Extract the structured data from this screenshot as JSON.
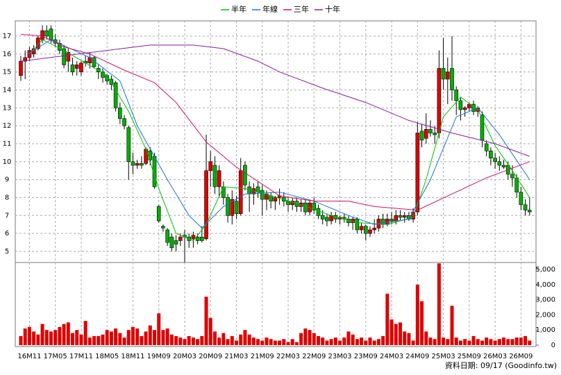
{
  "chart_data": [
    {
      "type": "candlestick",
      "up_color": "#e00000",
      "down_color": "#00b000",
      "ylim": [
        4.38,
        17.85
      ],
      "yticks": [
        5,
        6,
        7,
        8,
        9,
        10,
        11,
        12,
        13,
        14,
        15,
        16,
        17
      ],
      "grid": true,
      "categories": [
        null,
        null,
        "16M11",
        null,
        null,
        null,
        null,
        null,
        "17M05",
        null,
        null,
        null,
        null,
        null,
        "17M11",
        null,
        null,
        null,
        null,
        null,
        "18M05",
        null,
        null,
        null,
        null,
        null,
        "18M11",
        null,
        null,
        null,
        null,
        null,
        "19M09",
        null,
        null,
        null,
        null,
        null,
        "20M03",
        null,
        null,
        null,
        null,
        null,
        "20M09",
        null,
        null,
        null,
        null,
        null,
        "21M03",
        null,
        null,
        null,
        null,
        null,
        "21M09",
        null,
        null,
        null,
        null,
        null,
        "22M03",
        null,
        null,
        null,
        null,
        null,
        "22M09",
        null,
        null,
        null,
        null,
        null,
        "23M03",
        null,
        null,
        null,
        null,
        null,
        "23M09",
        null,
        null,
        null,
        null,
        null,
        "24M03",
        null,
        null,
        null,
        null,
        null,
        "24M09",
        null,
        null,
        null,
        null,
        null,
        "25M03",
        null,
        null,
        null,
        null,
        null,
        "25M09",
        null,
        null,
        null,
        null,
        null,
        "26M03",
        null,
        null,
        null,
        null,
        null,
        "26M09",
        null,
        null
      ],
      "ohlc": [
        [
          14.8,
          15.9,
          14.5,
          15.6
        ],
        [
          15.6,
          16.2,
          14.6,
          15.8
        ],
        [
          15.8,
          16.4,
          15.6,
          16.2
        ],
        [
          16.0,
          16.5,
          15.8,
          16.3
        ],
        [
          16.3,
          17.0,
          16.2,
          16.9
        ],
        [
          16.8,
          17.6,
          16.6,
          17.3
        ],
        [
          17.3,
          17.6,
          16.8,
          17.0
        ],
        [
          17.4,
          17.6,
          16.6,
          16.8
        ],
        [
          16.8,
          17.1,
          16.4,
          16.6
        ],
        [
          16.6,
          16.8,
          16.0,
          16.2
        ],
        [
          16.3,
          16.5,
          15.2,
          15.4
        ],
        [
          15.6,
          16.3,
          15.0,
          16.1
        ],
        [
          15.4,
          15.8,
          14.8,
          15.0
        ],
        [
          15.2,
          15.6,
          14.8,
          15.4
        ],
        [
          15.0,
          15.6,
          14.8,
          15.5
        ],
        [
          15.6,
          15.9,
          15.3,
          15.5
        ],
        [
          15.5,
          16.1,
          15.2,
          15.8
        ],
        [
          15.8,
          15.9,
          15.2,
          15.3
        ],
        [
          15.2,
          15.4,
          14.6,
          15.0
        ],
        [
          15.0,
          15.2,
          14.4,
          14.7
        ],
        [
          14.8,
          14.9,
          14.3,
          14.5
        ],
        [
          14.6,
          14.8,
          14.0,
          14.3
        ],
        [
          14.4,
          14.5,
          12.8,
          13.0
        ],
        [
          13.0,
          13.3,
          12.1,
          12.4
        ],
        [
          12.4,
          12.6,
          11.8,
          12.0
        ],
        [
          11.9,
          12.0,
          9.0,
          10.0
        ],
        [
          10.0,
          10.5,
          9.3,
          9.8
        ],
        [
          9.8,
          10.1,
          9.6,
          9.9
        ],
        [
          9.9,
          10.3,
          9.6,
          9.8
        ],
        [
          9.9,
          10.8,
          9.8,
          10.7
        ],
        [
          10.6,
          10.8,
          9.8,
          10.1
        ],
        [
          10.3,
          10.5,
          8.5,
          8.6
        ],
        [
          7.5,
          7.6,
          6.6,
          6.7
        ],
        [
          6.4,
          6.5,
          6.1,
          6.3
        ],
        [
          6.2,
          6.3,
          5.3,
          5.5
        ],
        [
          5.8,
          6.0,
          5.0,
          5.2
        ],
        [
          5.6,
          5.9,
          5.0,
          5.4
        ],
        [
          5.6,
          6.0,
          5.3,
          5.8
        ],
        [
          5.9,
          6.2,
          4.4,
          5.8
        ],
        [
          5.8,
          6.0,
          5.2,
          5.6
        ],
        [
          5.7,
          6.1,
          5.2,
          5.9
        ],
        [
          5.8,
          6.0,
          5.4,
          5.6
        ],
        [
          5.8,
          6.4,
          5.5,
          5.6
        ],
        [
          5.7,
          11.5,
          5.6,
          9.5
        ],
        [
          9.5,
          10.6,
          8.6,
          10.0
        ],
        [
          9.8,
          10.3,
          8.2,
          8.6
        ],
        [
          8.6,
          9.8,
          8.0,
          9.5
        ],
        [
          8.6,
          8.9,
          7.6,
          8.0
        ],
        [
          8.0,
          8.2,
          6.6,
          7.0
        ],
        [
          7.0,
          8.4,
          6.5,
          7.9
        ],
        [
          7.8,
          8.1,
          6.8,
          7.1
        ],
        [
          7.1,
          10.2,
          7.0,
          9.5
        ],
        [
          9.8,
          10.0,
          8.4,
          8.7
        ],
        [
          8.6,
          8.9,
          7.2,
          8.2
        ],
        [
          8.2,
          8.8,
          7.6,
          8.5
        ],
        [
          8.6,
          8.9,
          8.0,
          8.3
        ],
        [
          8.4,
          8.7,
          7.0,
          7.9
        ],
        [
          7.9,
          8.4,
          7.3,
          8.2
        ],
        [
          8.1,
          8.3,
          7.4,
          7.8
        ],
        [
          7.8,
          8.1,
          7.3,
          8.0
        ],
        [
          8.0,
          8.5,
          7.6,
          8.1
        ],
        [
          8.0,
          8.3,
          7.5,
          7.8
        ],
        [
          7.8,
          8.0,
          7.2,
          7.6
        ],
        [
          7.6,
          8.0,
          7.3,
          7.8
        ],
        [
          7.8,
          8.0,
          7.2,
          7.5
        ],
        [
          7.5,
          7.9,
          7.2,
          7.7
        ],
        [
          7.7,
          7.9,
          7.0,
          7.2
        ],
        [
          7.2,
          7.9,
          7.0,
          7.7
        ],
        [
          7.7,
          8.0,
          7.1,
          7.3
        ],
        [
          7.4,
          7.6,
          6.8,
          7.0
        ],
        [
          7.0,
          7.3,
          6.5,
          6.8
        ],
        [
          6.9,
          7.1,
          6.4,
          6.7
        ],
        [
          6.7,
          7.2,
          6.5,
          7.0
        ],
        [
          7.0,
          7.2,
          6.6,
          6.8
        ],
        [
          6.8,
          7.0,
          6.5,
          6.9
        ],
        [
          6.9,
          7.1,
          6.6,
          6.8
        ],
        [
          6.8,
          7.0,
          6.4,
          6.6
        ],
        [
          6.6,
          6.9,
          6.2,
          6.8
        ],
        [
          6.8,
          6.9,
          6.0,
          6.2
        ],
        [
          6.2,
          6.6,
          6.0,
          6.4
        ],
        [
          6.4,
          6.5,
          5.6,
          6.0
        ],
        [
          6.0,
          6.4,
          5.8,
          6.2
        ],
        [
          6.2,
          6.8,
          6.0,
          6.3
        ],
        [
          6.3,
          7.0,
          6.1,
          6.8
        ],
        [
          6.8,
          7.1,
          6.3,
          6.5
        ],
        [
          6.5,
          7.1,
          6.4,
          6.8
        ],
        [
          6.8,
          7.2,
          6.5,
          6.7
        ],
        [
          6.7,
          7.3,
          6.5,
          7.0
        ],
        [
          7.0,
          7.3,
          6.7,
          6.9
        ],
        [
          6.9,
          7.2,
          6.6,
          7.0
        ],
        [
          7.0,
          7.2,
          6.7,
          6.8
        ],
        [
          6.8,
          7.4,
          6.6,
          7.2
        ],
        [
          7.2,
          12.2,
          7.0,
          11.6
        ],
        [
          11.7,
          12.1,
          10.8,
          11.2
        ],
        [
          11.3,
          12.7,
          11.0,
          11.8
        ],
        [
          11.8,
          12.3,
          11.4,
          11.6
        ],
        [
          11.6,
          12.0,
          11.0,
          11.5
        ],
        [
          11.6,
          16.2,
          11.3,
          15.2
        ],
        [
          15.2,
          16.9,
          14.0,
          14.6
        ],
        [
          14.6,
          15.8,
          13.2,
          15.0
        ],
        [
          15.2,
          17.0,
          13.4,
          14.0
        ],
        [
          14.0,
          14.2,
          12.6,
          13.4
        ],
        [
          13.4,
          13.6,
          12.3,
          12.9
        ],
        [
          12.9,
          13.1,
          12.5,
          13.0
        ],
        [
          13.0,
          13.3,
          12.8,
          13.2
        ],
        [
          13.2,
          13.4,
          12.6,
          12.8
        ],
        [
          12.8,
          13.1,
          12.5,
          13.0
        ],
        [
          12.6,
          12.8,
          10.8,
          11.2
        ],
        [
          11.0,
          11.2,
          10.3,
          10.6
        ],
        [
          10.6,
          10.8,
          9.8,
          10.2
        ],
        [
          10.2,
          10.5,
          9.6,
          10.0
        ],
        [
          10.0,
          10.3,
          9.5,
          9.8
        ],
        [
          9.8,
          10.1,
          9.6,
          9.7
        ],
        [
          9.8,
          10.0,
          9.0,
          9.3
        ],
        [
          9.3,
          9.8,
          8.6,
          9.1
        ],
        [
          9.1,
          9.3,
          8.0,
          8.3
        ],
        [
          8.3,
          8.6,
          7.3,
          7.6
        ],
        [
          7.6,
          7.9,
          7.0,
          7.3
        ],
        [
          7.3,
          8.0,
          7.0,
          7.2
        ]
      ],
      "series": [
        {
          "name": "半年",
          "color": "#00c000",
          "x": [
            2,
            5,
            10,
            15,
            20,
            25,
            29,
            32,
            36,
            40,
            43,
            47,
            52,
            58,
            65,
            72,
            78,
            85,
            91,
            94,
            98,
            102,
            106,
            110,
            114,
            118
          ],
          "values": [
            16.0,
            16.8,
            16.2,
            15.5,
            14.8,
            12.8,
            10.7,
            8.5,
            6.0,
            5.6,
            6.5,
            8.6,
            8.5,
            8.1,
            7.6,
            7.0,
            6.6,
            6.5,
            6.9,
            9.0,
            12.5,
            13.6,
            12.9,
            10.9,
            9.5,
            8.0
          ]
        },
        {
          "name": "年線",
          "color": "#1a6fd8",
          "x": [
            1.6,
            7,
            16,
            23,
            27,
            34,
            39,
            42,
            47,
            52,
            60,
            68,
            76,
            82,
            90,
            95,
            101,
            106,
            111,
            118
          ],
          "values": [
            16.0,
            16.8,
            15.8,
            14.5,
            12.0,
            9.0,
            7.0,
            6.3,
            7.5,
            8.2,
            8.3,
            7.8,
            7.0,
            6.5,
            6.8,
            9.0,
            12.5,
            13.0,
            11.5,
            9.0
          ]
        },
        {
          "name": "三年",
          "color": "#d0106a",
          "x": [
            0,
            5,
            10,
            16,
            24,
            31,
            36,
            43,
            50,
            60,
            68,
            76,
            82,
            92,
            100,
            108,
            118
          ],
          "values": [
            17.1,
            17.0,
            16.4,
            16.0,
            15.1,
            14.4,
            13.3,
            11.1,
            9.7,
            8.1,
            7.8,
            7.8,
            7.5,
            7.3,
            8.2,
            9.1,
            10.0
          ]
        },
        {
          "name": "十年",
          "color": "#8a1aa8",
          "x": [
            0,
            10,
            20,
            30,
            40,
            47,
            55,
            60,
            70,
            80,
            90,
            100,
            110,
            118
          ],
          "values": [
            15.6,
            15.9,
            16.2,
            16.5,
            16.5,
            16.3,
            15.6,
            15.0,
            14.1,
            13.3,
            12.3,
            11.6,
            11.0,
            10.3
          ]
        }
      ]
    },
    {
      "type": "bar",
      "color": "#e00000",
      "ylim": [
        0,
        5460
      ],
      "yticks": [
        0,
        {
          "value": 1000,
          "label": "1,000"
        },
        {
          "value": 2000,
          "label": "2,000"
        },
        {
          "value": 3000,
          "label": "3,000"
        },
        {
          "value": 4000,
          "label": "4,000"
        },
        {
          "value": 5000,
          "label": "5,000"
        }
      ],
      "values": [
        600,
        1100,
        1200,
        900,
        700,
        1400,
        1000,
        900,
        1000,
        1200,
        1400,
        1500,
        800,
        1000,
        700,
        1600,
        500,
        600,
        600,
        700,
        1000,
        900,
        1100,
        800,
        500,
        1000,
        1200,
        1100,
        600,
        900,
        1300,
        1000,
        2100,
        1000,
        1100,
        700,
        600,
        500,
        400,
        600,
        500,
        400,
        600,
        3200,
        1800,
        900,
        500,
        800,
        400,
        600,
        300,
        700,
        1000,
        700,
        500,
        400,
        300,
        500,
        400,
        300,
        300,
        400,
        200,
        400,
        200,
        800,
        1100,
        1000,
        800,
        600,
        500,
        300,
        400,
        500,
        300,
        500,
        900,
        700,
        400,
        500,
        300,
        500,
        300,
        400,
        600,
        3400,
        1700,
        1400,
        1500,
        900,
        800,
        300,
        4000,
        2900,
        900,
        500,
        400,
        5400,
        500,
        400,
        2600,
        500,
        300,
        400,
        300,
        600,
        400,
        300,
        500,
        400,
        300,
        400,
        500,
        400,
        400,
        500,
        500,
        600,
        300
      ]
    },
    {
      "type": "note",
      "text": "資料日期: 09/17  (Goodinfo.tw)"
    }
  ]
}
